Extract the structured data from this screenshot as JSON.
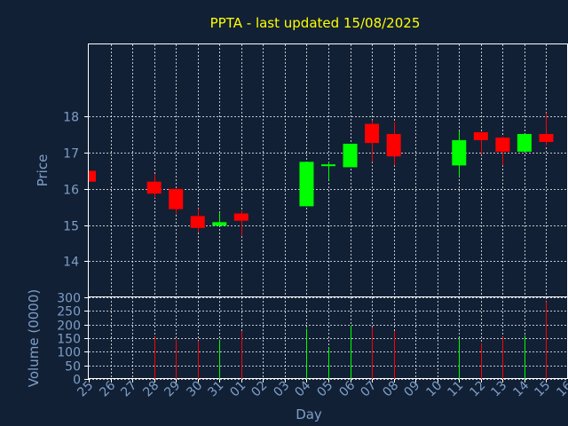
{
  "chart_data": {
    "type": "candlestick",
    "title": "PPTA - last updated 15/08/2025",
    "xlabel": "Day",
    "price_panel": {
      "ylabel": "Price",
      "ylim": [
        13,
        20
      ],
      "yticks": [
        "14",
        "15",
        "16",
        "17",
        "18"
      ]
    },
    "volume_panel": {
      "ylabel": "Volume (0000)",
      "ylim": [
        0,
        300
      ],
      "yticks": [
        "0",
        "50",
        "100",
        "150",
        "200",
        "250",
        "300"
      ]
    },
    "x_tick_labels": [
      "25",
      "26",
      "27",
      "28",
      "29",
      "30",
      "31",
      "01",
      "02",
      "03",
      "04",
      "05",
      "06",
      "07",
      "08",
      "09",
      "10",
      "11",
      "12",
      "13",
      "14",
      "15",
      "16"
    ],
    "grid": true,
    "colors": {
      "background": "#112035",
      "title": "#ffff00",
      "axis_text": "#7f9fc8",
      "frame": "#ffffff",
      "grid": "#ffffff",
      "up": "#00ff00",
      "down": "#ff0000"
    },
    "candles": [
      {
        "day": "25",
        "open": 16.5,
        "high": 16.5,
        "low": 16.2,
        "close": 16.2,
        "volume": 0
      },
      {
        "day": "28",
        "open": 16.2,
        "high": 16.4,
        "low": 15.75,
        "close": 15.87,
        "volume": 155
      },
      {
        "day": "29",
        "open": 16.0,
        "high": 16.0,
        "low": 15.3,
        "close": 15.44,
        "volume": 145
      },
      {
        "day": "30",
        "open": 15.25,
        "high": 15.45,
        "low": 14.8,
        "close": 14.92,
        "volume": 140
      },
      {
        "day": "31",
        "open": 14.98,
        "high": 15.35,
        "low": 14.98,
        "close": 15.08,
        "volume": 145
      },
      {
        "day": "01",
        "open": 15.32,
        "high": 15.4,
        "low": 14.7,
        "close": 15.12,
        "volume": 175
      },
      {
        "day": "04",
        "open": 15.52,
        "high": 16.75,
        "low": 15.52,
        "close": 16.75,
        "volume": 185
      },
      {
        "day": "05",
        "open": 16.63,
        "high": 16.75,
        "low": 16.25,
        "close": 16.68,
        "volume": 115
      },
      {
        "day": "06",
        "open": 16.6,
        "high": 17.25,
        "low": 16.6,
        "close": 17.25,
        "volume": 195
      },
      {
        "day": "07",
        "open": 17.8,
        "high": 17.9,
        "low": 16.75,
        "close": 17.27,
        "volume": 190
      },
      {
        "day": "08",
        "open": 17.52,
        "high": 17.85,
        "low": 16.65,
        "close": 16.9,
        "volume": 175
      },
      {
        "day": "11",
        "open": 16.65,
        "high": 17.6,
        "low": 16.33,
        "close": 17.35,
        "volume": 150
      },
      {
        "day": "12",
        "open": 17.57,
        "high": 17.57,
        "low": 16.95,
        "close": 17.35,
        "volume": 130
      },
      {
        "day": "13",
        "open": 17.42,
        "high": 17.45,
        "low": 16.65,
        "close": 17.03,
        "volume": 155
      },
      {
        "day": "14",
        "open": 17.03,
        "high": 17.52,
        "low": 17.03,
        "close": 17.52,
        "volume": 160
      },
      {
        "day": "15",
        "open": 17.52,
        "high": 18.1,
        "low": 17.2,
        "close": 17.3,
        "volume": 285
      }
    ]
  }
}
